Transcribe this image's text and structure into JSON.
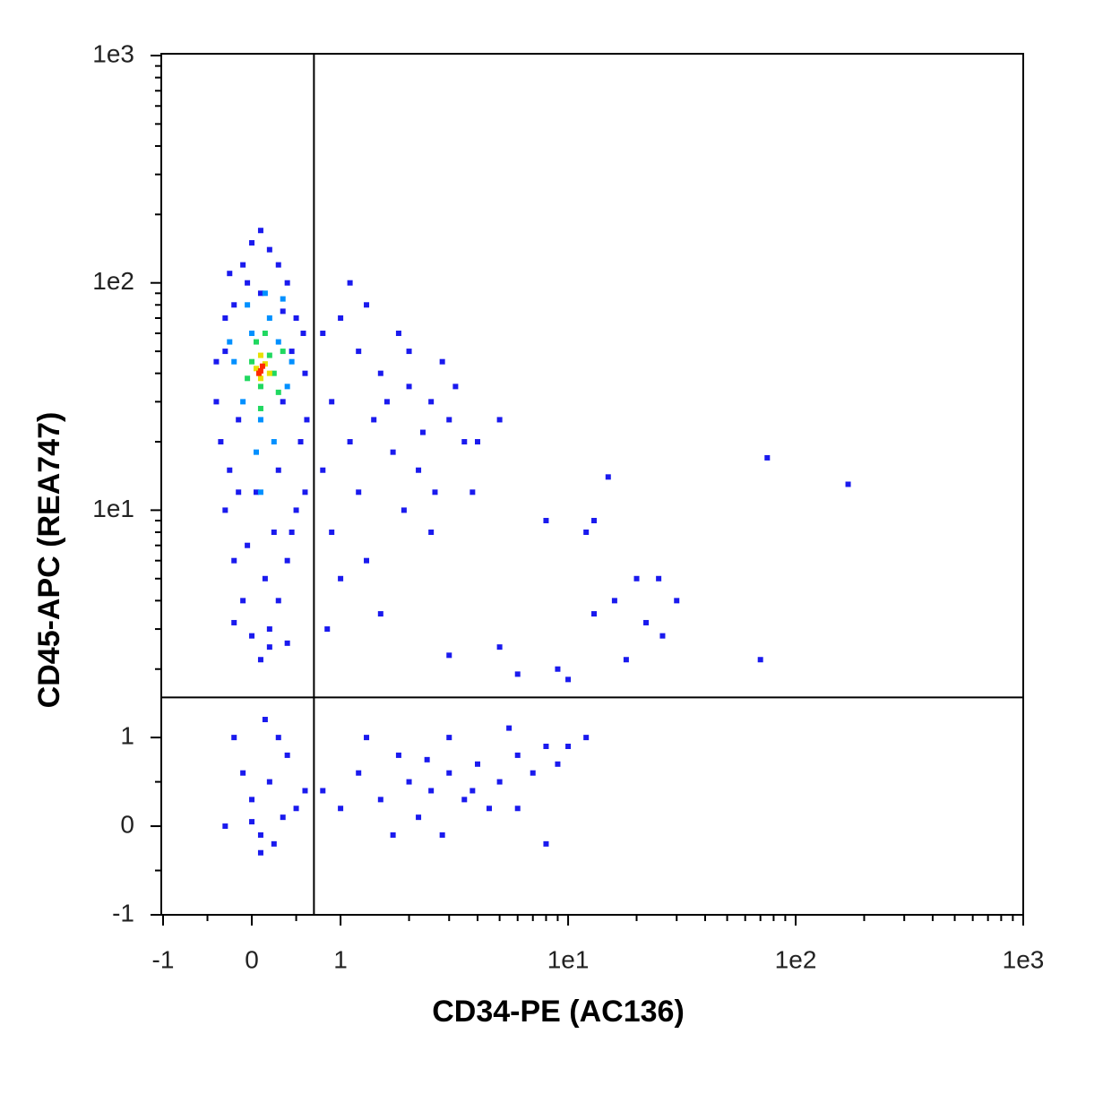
{
  "chart_data": {
    "type": "scatter",
    "xlabel": "CD34-PE (AC136)",
    "ylabel": "CD45-APC (REA747)",
    "xscale": "symlog",
    "yscale": "symlog",
    "linscale": 0.39,
    "xlim": [
      -1,
      1000
    ],
    "ylim": [
      -1,
      1000
    ],
    "xticks": [
      -1,
      0,
      1,
      {
        "value": 10,
        "label": "1e1"
      },
      {
        "value": 100,
        "label": "1e2"
      },
      {
        "value": 1000,
        "label": "1e3"
      }
    ],
    "yticks": [
      -1,
      0,
      1,
      {
        "value": 10,
        "label": "1e1"
      },
      {
        "value": 100,
        "label": "1e2"
      },
      {
        "value": 1000,
        "label": "1e3"
      }
    ],
    "xminorticks": [
      -0.5,
      0.5,
      2,
      3,
      4,
      5,
      6,
      7,
      8,
      9,
      20,
      30,
      40,
      50,
      60,
      70,
      80,
      90,
      200,
      300,
      400,
      500,
      600,
      700,
      800,
      900
    ],
    "yminorticks": [
      -0.5,
      0.5,
      2,
      3,
      4,
      5,
      6,
      7,
      8,
      9,
      20,
      30,
      40,
      50,
      60,
      70,
      80,
      90,
      200,
      300,
      400,
      500,
      600,
      700,
      800,
      900
    ],
    "gates": {
      "x": 0.7,
      "y": 1.5
    },
    "series": [
      {
        "color": "#1a1aee",
        "x": [
          -0.4,
          -0.3,
          -0.35,
          -0.2,
          -0.1,
          0,
          0.2,
          0.4,
          0.5,
          0.6,
          0.55,
          0.5,
          0.4,
          0.3,
          0.2,
          0.1,
          0,
          -0.1,
          -0.2,
          -0.3,
          -0.25,
          -0.15,
          0.35,
          0.45,
          0.3,
          0.1,
          -0.05,
          -0.3,
          -0.4,
          0.6,
          0.25,
          0.15,
          -0.05,
          0.05,
          0.3,
          0.45,
          -0.15,
          0.2,
          0.4,
          -0.2,
          0.62,
          0.58,
          0.1,
          -0.25,
          0.35,
          0.8,
          1,
          1.2,
          1.5,
          2,
          2.5,
          3,
          3.5,
          2.8,
          1.8,
          1.3,
          0.9,
          1.1,
          1.4,
          1.7,
          2.2,
          2.6,
          1.9,
          1.2,
          0.9,
          1,
          1.3,
          0.8,
          1.6,
          2.3,
          3.2,
          4,
          2,
          5,
          1.1,
          0.85,
          1.5,
          2.5,
          3.8,
          8,
          12,
          15,
          13,
          20,
          25,
          16,
          13,
          22,
          30,
          75,
          170,
          70,
          18,
          5,
          9,
          6,
          26,
          3,
          10,
          -0.3,
          0,
          0.1,
          0.2,
          0.4,
          0.5,
          -0.1,
          0.3,
          0.1,
          0.6,
          -0.2,
          0.15,
          0.35,
          0,
          0.25,
          0.8,
          1,
          1.2,
          1.5,
          1.8,
          2,
          2.5,
          3,
          3.5,
          4,
          5,
          6,
          7,
          8,
          9,
          2.2,
          2.8,
          4.5,
          6,
          1.3,
          3,
          5.5,
          10,
          8,
          12,
          1.7,
          3.8,
          2.4
        ],
        "y": [
          30,
          50,
          20,
          80,
          120,
          150,
          140,
          100,
          70,
          40,
          20,
          10,
          6,
          4,
          3,
          2.2,
          2.8,
          4,
          6,
          10,
          15,
          25,
          30,
          50,
          120,
          170,
          100,
          70,
          45,
          12,
          8,
          5,
          7,
          12,
          15,
          8,
          12,
          2.5,
          2.6,
          3.2,
          25,
          60,
          90,
          110,
          75,
          60,
          70,
          50,
          40,
          35,
          30,
          25,
          20,
          45,
          60,
          80,
          30,
          20,
          25,
          18,
          15,
          12,
          10,
          12,
          8,
          5,
          6,
          15,
          30,
          22,
          35,
          20,
          50,
          25,
          100,
          3,
          3.5,
          8,
          12,
          9,
          8,
          14,
          9,
          5,
          5,
          4,
          3.5,
          3.2,
          4,
          17,
          13,
          2.2,
          2.2,
          2.5,
          2,
          1.9,
          2.8,
          2.3,
          1.8,
          0,
          0.3,
          -0.1,
          0.5,
          0.8,
          0.2,
          0.6,
          1,
          -0.3,
          0.4,
          1,
          1.2,
          0.1,
          0.05,
          -0.2,
          0.4,
          0.2,
          0.6,
          0.3,
          0.8,
          0.5,
          0.4,
          0.6,
          0.3,
          0.7,
          0.5,
          0.8,
          0.6,
          0.9,
          0.7,
          0.1,
          -0.1,
          0.2,
          0.2,
          1,
          1,
          1.1,
          0.9,
          -0.2,
          1,
          -0.1,
          0.4,
          0.75
        ]
      },
      {
        "color": "#0090ff",
        "x": [
          0,
          0.2,
          -0.2,
          0.4,
          0.1,
          -0.1,
          0.3,
          0.15,
          -0.25,
          0.45,
          0.05,
          0.25,
          -0.05,
          0.35,
          0.1
        ],
        "y": [
          60,
          70,
          45,
          35,
          25,
          30,
          55,
          90,
          55,
          45,
          18,
          20,
          80,
          85,
          12
        ]
      },
      {
        "color": "#20d860",
        "x": [
          0,
          0.2,
          0.1,
          0.25,
          0.05,
          0.3,
          -0.05,
          0.15,
          0.1,
          0.35
        ],
        "y": [
          45,
          48,
          35,
          40,
          55,
          33,
          38,
          60,
          28,
          50
        ]
      },
      {
        "color": "#e8e000",
        "x": [
          0.05,
          0.15,
          0.1,
          0.2,
          0.1
        ],
        "y": [
          42,
          44,
          38,
          40,
          48
        ]
      },
      {
        "color": "#ff2a00",
        "x": [
          0.1,
          0.12,
          0.08
        ],
        "y": [
          41,
          43,
          40
        ]
      }
    ]
  }
}
